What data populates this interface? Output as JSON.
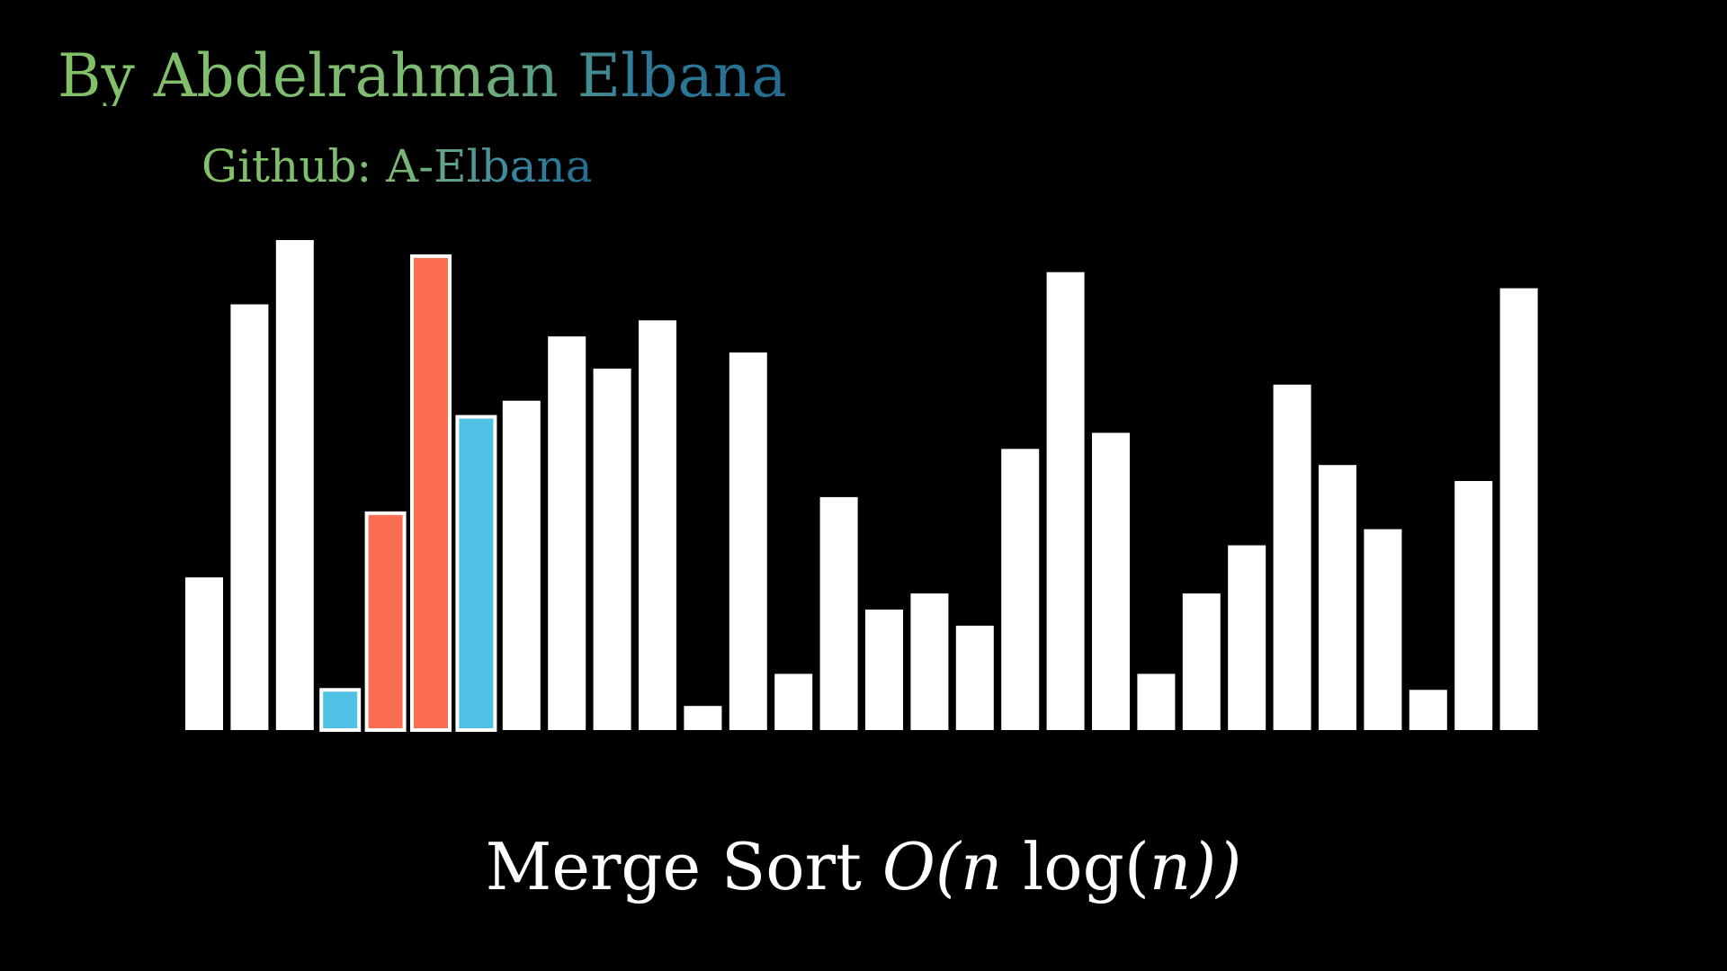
{
  "header": {
    "author": "By Abdelrahman Elbana",
    "github": "Github:  A-Elbana"
  },
  "caption": {
    "title": "Merge Sort",
    "complexity_open": "O(n",
    "complexity_log": "log(",
    "complexity_close": "n))"
  },
  "colors": {
    "background": "#000000",
    "default_bar": "#ffffff",
    "compare_red": "#fc6e52",
    "compare_blue": "#4fc1e4",
    "highlight_stroke": "#ffffff",
    "credit_gradient_start": "#83c167",
    "credit_gradient_end": "#236b8e"
  },
  "chart_data": {
    "type": "bar",
    "values": [
      19,
      53,
      61,
      5,
      27,
      59,
      39,
      41,
      49,
      45,
      51,
      3,
      47,
      7,
      29,
      15,
      17,
      13,
      35,
      57,
      37,
      7,
      17,
      23,
      43,
      33,
      25,
      5,
      31,
      55
    ],
    "states": [
      "default",
      "default",
      "default",
      "blue",
      "red",
      "red",
      "blue",
      "default",
      "default",
      "default",
      "default",
      "default",
      "default",
      "default",
      "default",
      "default",
      "default",
      "default",
      "default",
      "default",
      "default",
      "default",
      "default",
      "default",
      "default",
      "default",
      "default",
      "default",
      "default",
      "default"
    ],
    "ylim": [
      0,
      61
    ],
    "grid": false,
    "legend": "none"
  }
}
